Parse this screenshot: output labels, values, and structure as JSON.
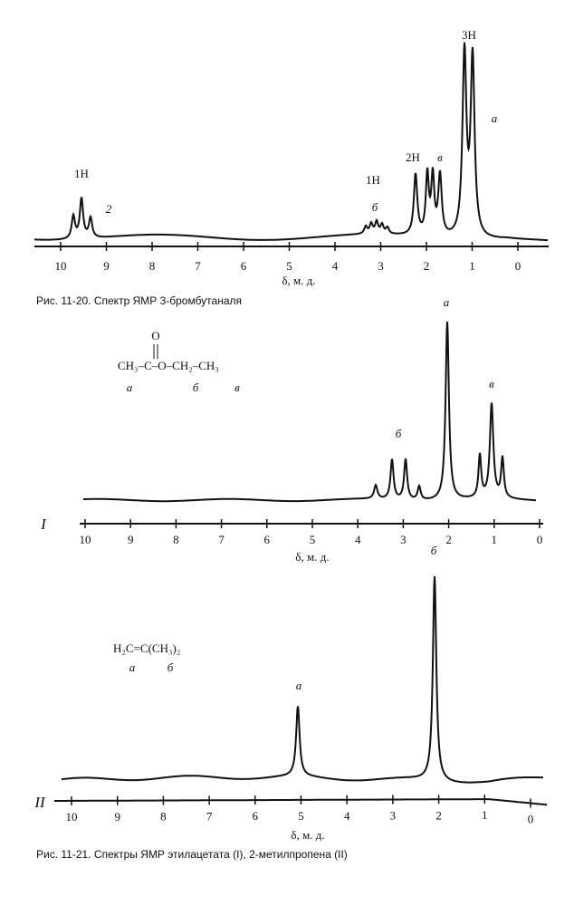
{
  "figure_1": {
    "peak_labels": [
      "1H",
      "2",
      "1H",
      "б",
      "2H",
      "в",
      "3H",
      "а"
    ],
    "axis_ticks": [
      10,
      9,
      8,
      7,
      6,
      5,
      4,
      3,
      2,
      1,
      0
    ],
    "axis_label": "δ, м. д.",
    "caption": "Рис. 11-20. Спектр ЯМР 3-бромбутаналя"
  },
  "figure_2": {
    "panel_I": {
      "roman": "I",
      "formula_carbonyl": "O",
      "formula": "CH₃–C–O–CH₂–CH₃",
      "formula_labels": [
        "а",
        "б",
        "в"
      ],
      "peak_labels": [
        "б",
        "а",
        "в"
      ],
      "axis_ticks": [
        10,
        9,
        8,
        7,
        6,
        5,
        4,
        3,
        2,
        1,
        0
      ],
      "axis_label": "δ, м. д."
    },
    "panel_II": {
      "roman": "II",
      "formula": "H₂C=C(CH₃)₂",
      "formula_labels": [
        "а",
        "б"
      ],
      "peak_labels": [
        "а",
        "б"
      ],
      "axis_ticks": [
        10,
        9,
        8,
        7,
        6,
        5,
        4,
        3,
        2,
        1,
        0
      ],
      "axis_label": "δ, м. д."
    },
    "caption": "Рис. 11-21. Спектры ЯМР этилацетата (I), 2-метилпропена (II)"
  }
}
